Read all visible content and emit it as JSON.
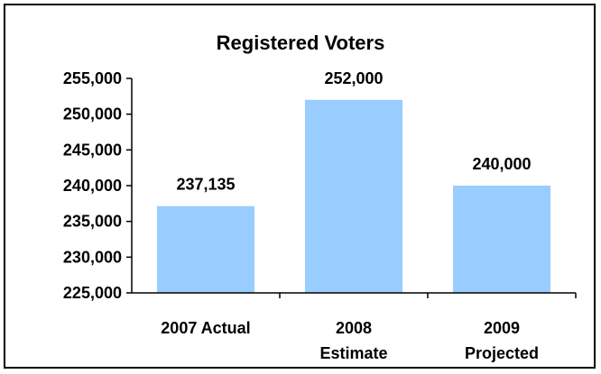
{
  "chart_data": {
    "type": "bar",
    "title": "Registered Voters",
    "xlabel": "",
    "ylabel": "",
    "categories": [
      [
        "2007 Actual"
      ],
      [
        "2008",
        "Estimate"
      ],
      [
        "2009",
        "Projected"
      ]
    ],
    "values": [
      237135,
      252000,
      240000
    ],
    "data_labels": [
      "237,135",
      "252,000",
      "240,000"
    ],
    "ylim": [
      225000,
      255000
    ],
    "yticks": [
      225000,
      230000,
      235000,
      240000,
      245000,
      250000,
      255000
    ],
    "ytick_labels": [
      "225,000",
      "230,000",
      "235,000",
      "240,000",
      "245,000",
      "250,000",
      "255,000"
    ],
    "grid": false,
    "legend": "none",
    "bar_color": "#99CCFF"
  }
}
